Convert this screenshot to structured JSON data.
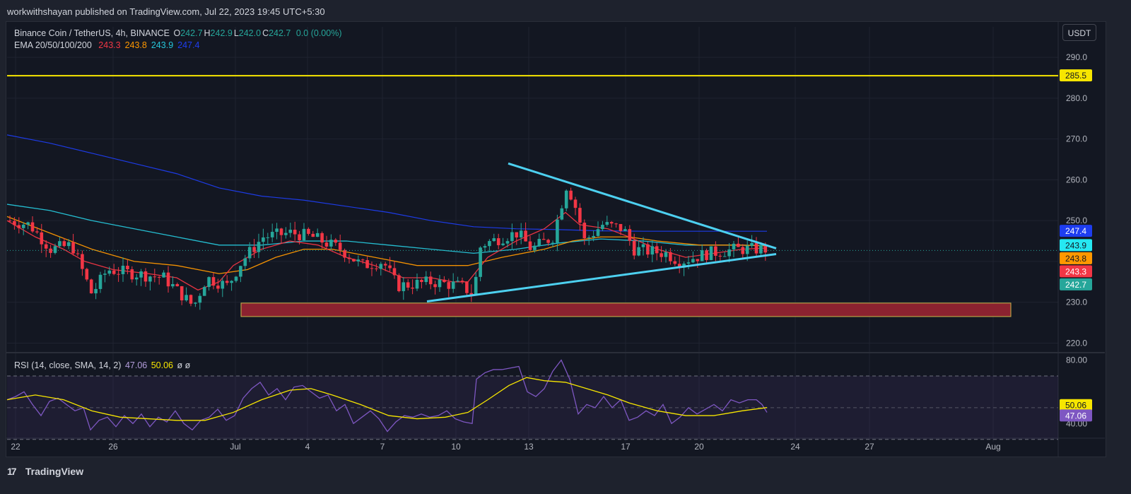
{
  "header": {
    "published_text": "workwithshayan published on TradingView.com, Jul 22, 2023 19:45 UTC+5:30"
  },
  "legend": {
    "symbol": "Binance Coin / TetherUS, 4h, BINANCE",
    "ohlc": [
      {
        "label": "O",
        "value": "242.7"
      },
      {
        "label": "H",
        "value": "242.9"
      },
      {
        "label": "L",
        "value": "242.0"
      },
      {
        "label": "C",
        "value": "242.7"
      }
    ],
    "change": "0.0 (0.00%)",
    "ema_title": "EMA 20/50/100/200",
    "ema_values": [
      {
        "value": "243.3",
        "color": "#f23645"
      },
      {
        "value": "243.8",
        "color": "#ff9800"
      },
      {
        "value": "243.9",
        "color": "#26c6da"
      },
      {
        "value": "247.4",
        "color": "#1e3df0"
      }
    ]
  },
  "rsi_legend": {
    "title": "RSI (14, close, SMA, 14, 2)",
    "rsi": "47.06",
    "sma": "50.06",
    "extra": "ø  ø"
  },
  "currency_button": "USDT",
  "footer": {
    "brand": "TradingView",
    "logo_mark": "17"
  },
  "chart_data": [
    {
      "type": "candlestick",
      "title": "Binance Coin / TetherUS, 4h, BINANCE",
      "x_ticks": [
        "22",
        "26",
        "Jul",
        "4",
        "7",
        "10",
        "13",
        "17",
        "20",
        "24",
        "27",
        "Aug"
      ],
      "ylim": [
        218,
        294
      ],
      "y_ticks": [
        "290.0",
        "280.0",
        "270.0",
        "260.0",
        "250.0",
        "240.0",
        "230.0",
        "220.0"
      ],
      "price_labels": [
        {
          "label": "285.5",
          "value": 285.5,
          "bg": "#f7e600",
          "fg": "#131722"
        },
        {
          "label": "247.4",
          "value": 247.4,
          "bg": "#1e3df0",
          "fg": "#ffffff"
        },
        {
          "label": "243.9",
          "value": 243.9,
          "bg": "#26e8f2",
          "fg": "#131722"
        },
        {
          "label": "243.8",
          "value": 243.8,
          "bg": "#ff9800",
          "fg": "#131722"
        },
        {
          "label": "243.3",
          "value": 243.3,
          "bg": "#f23645",
          "fg": "#ffffff"
        },
        {
          "label": "242.7",
          "value": 242.7,
          "bg": "#26a69a",
          "fg": "#ffffff"
        }
      ],
      "horizontal_line": {
        "value": 285.5,
        "color": "#f7e600"
      },
      "support_zone": {
        "from": 226.5,
        "to": 229.8,
        "color": "#8b2230"
      },
      "triangle": {
        "upper": [
          {
            "x": "Jul 12",
            "y": 264.0
          },
          {
            "x": "Jul 23",
            "y": 243.2
          }
        ],
        "lower": [
          {
            "x": "Jul 9",
            "y": 230.2
          },
          {
            "x": "Jul 23",
            "y": 241.8
          }
        ]
      },
      "last_price": 242.7,
      "ema": {
        "ema20": [
          [
            0,
            250
          ],
          [
            40,
            246
          ],
          [
            80,
            243
          ],
          [
            110,
            240
          ],
          [
            150,
            238
          ],
          [
            200,
            237
          ],
          [
            240,
            236
          ],
          [
            270,
            233
          ],
          [
            300,
            235
          ],
          [
            320,
            239
          ],
          [
            360,
            243
          ],
          [
            400,
            245
          ],
          [
            440,
            244
          ],
          [
            480,
            241
          ],
          [
            520,
            239
          ],
          [
            560,
            236
          ],
          [
            600,
            236
          ],
          [
            630,
            235
          ],
          [
            652,
            235
          ],
          [
            680,
            241
          ],
          [
            720,
            245
          ],
          [
            760,
            248
          ],
          [
            790,
            252
          ],
          [
            810,
            249
          ],
          [
            850,
            248
          ],
          [
            880,
            246
          ],
          [
            920,
            243
          ],
          [
            960,
            241
          ],
          [
            1000,
            242
          ],
          [
            1040,
            243
          ],
          [
            1075,
            243.3
          ]
        ],
        "ema50": [
          [
            0,
            251
          ],
          [
            60,
            247
          ],
          [
            120,
            243
          ],
          [
            180,
            240
          ],
          [
            240,
            239
          ],
          [
            300,
            237
          ],
          [
            340,
            238
          ],
          [
            380,
            241
          ],
          [
            420,
            243
          ],
          [
            460,
            243
          ],
          [
            520,
            241
          ],
          [
            580,
            239
          ],
          [
            652,
            239
          ],
          [
            700,
            241
          ],
          [
            760,
            243
          ],
          [
            800,
            245
          ],
          [
            840,
            246
          ],
          [
            880,
            246
          ],
          [
            920,
            245
          ],
          [
            980,
            244
          ],
          [
            1040,
            244
          ],
          [
            1075,
            243.8
          ]
        ],
        "ema100": [
          [
            0,
            254
          ],
          [
            60,
            252.5
          ],
          [
            120,
            250
          ],
          [
            180,
            248
          ],
          [
            240,
            246
          ],
          [
            300,
            244
          ],
          [
            360,
            244
          ],
          [
            420,
            245
          ],
          [
            480,
            245
          ],
          [
            540,
            244
          ],
          [
            600,
            243
          ],
          [
            660,
            242
          ],
          [
            720,
            243
          ],
          [
            780,
            244.5
          ],
          [
            840,
            245.5
          ],
          [
            900,
            245
          ],
          [
            960,
            244
          ],
          [
            1020,
            244
          ],
          [
            1075,
            243.9
          ]
        ],
        "ema200": [
          [
            0,
            271
          ],
          [
            60,
            269
          ],
          [
            120,
            266.5
          ],
          [
            180,
            264
          ],
          [
            240,
            261.5
          ],
          [
            300,
            258
          ],
          [
            360,
            256
          ],
          [
            420,
            255
          ],
          [
            480,
            253.5
          ],
          [
            540,
            252
          ],
          [
            600,
            250
          ],
          [
            660,
            248.5
          ],
          [
            720,
            248
          ],
          [
            780,
            247.8
          ],
          [
            840,
            247.5
          ],
          [
            900,
            247.4
          ],
          [
            960,
            247.4
          ],
          [
            1020,
            247.4
          ],
          [
            1075,
            247.4
          ]
        ]
      }
    },
    {
      "type": "line",
      "title": "RSI (14, close, SMA, 14, 2)",
      "ylim": [
        33,
        82
      ],
      "y_ticks": [
        "80.00",
        "40.00"
      ],
      "bands": [
        70,
        50,
        30
      ],
      "price_labels": [
        {
          "label": "50.06",
          "value": 50.06,
          "bg": "#f7e600",
          "fg": "#131722"
        },
        {
          "label": "47.06",
          "value": 47.06,
          "bg": "#7e57c2",
          "fg": "#ffffff"
        }
      ],
      "rsi": [
        [
          0,
          55
        ],
        [
          12,
          57
        ],
        [
          24,
          60
        ],
        [
          36,
          52
        ],
        [
          48,
          45
        ],
        [
          60,
          54
        ],
        [
          72,
          56
        ],
        [
          84,
          52
        ],
        [
          96,
          48
        ],
        [
          108,
          50
        ],
        [
          118,
          36
        ],
        [
          130,
          42
        ],
        [
          142,
          44
        ],
        [
          154,
          38
        ],
        [
          166,
          45
        ],
        [
          178,
          40
        ],
        [
          190,
          46
        ],
        [
          202,
          38
        ],
        [
          214,
          44
        ],
        [
          226,
          41
        ],
        [
          238,
          48
        ],
        [
          250,
          40
        ],
        [
          262,
          36
        ],
        [
          274,
          42
        ],
        [
          286,
          44
        ],
        [
          298,
          49
        ],
        [
          310,
          42
        ],
        [
          322,
          45
        ],
        [
          334,
          56
        ],
        [
          346,
          62
        ],
        [
          358,
          66
        ],
        [
          370,
          58
        ],
        [
          382,
          62
        ],
        [
          394,
          55
        ],
        [
          406,
          63
        ],
        [
          418,
          64
        ],
        [
          430,
          60
        ],
        [
          442,
          56
        ],
        [
          454,
          58
        ],
        [
          466,
          48
        ],
        [
          478,
          52
        ],
        [
          490,
          40
        ],
        [
          502,
          44
        ],
        [
          514,
          48
        ],
        [
          526,
          43
        ],
        [
          538,
          35
        ],
        [
          550,
          41
        ],
        [
          562,
          45
        ],
        [
          574,
          44
        ],
        [
          586,
          46
        ],
        [
          598,
          44
        ],
        [
          610,
          45
        ],
        [
          622,
          48
        ],
        [
          634,
          43
        ],
        [
          646,
          41
        ],
        [
          658,
          40
        ],
        [
          664,
          68
        ],
        [
          676,
          72
        ],
        [
          688,
          74
        ],
        [
          700,
          74
        ],
        [
          712,
          75
        ],
        [
          724,
          76
        ],
        [
          736,
          60
        ],
        [
          748,
          57
        ],
        [
          760,
          62
        ],
        [
          772,
          73
        ],
        [
          784,
          80
        ],
        [
          796,
          68
        ],
        [
          808,
          46
        ],
        [
          820,
          52
        ],
        [
          832,
          50
        ],
        [
          844,
          57
        ],
        [
          856,
          50
        ],
        [
          868,
          55
        ],
        [
          880,
          42
        ],
        [
          892,
          44
        ],
        [
          904,
          48
        ],
        [
          916,
          45
        ],
        [
          928,
          52
        ],
        [
          940,
          40
        ],
        [
          952,
          44
        ],
        [
          964,
          50
        ],
        [
          976,
          46
        ],
        [
          988,
          49
        ],
        [
          1000,
          52
        ],
        [
          1012,
          48
        ],
        [
          1024,
          55
        ],
        [
          1036,
          53
        ],
        [
          1048,
          55
        ],
        [
          1060,
          55
        ],
        [
          1068,
          52
        ],
        [
          1075,
          47
        ]
      ],
      "sma": [
        [
          0,
          55
        ],
        [
          40,
          58
        ],
        [
          80,
          55
        ],
        [
          120,
          48
        ],
        [
          160,
          44
        ],
        [
          200,
          43
        ],
        [
          240,
          42
        ],
        [
          280,
          42
        ],
        [
          320,
          47
        ],
        [
          360,
          55
        ],
        [
          400,
          61
        ],
        [
          430,
          62
        ],
        [
          460,
          58
        ],
        [
          500,
          52
        ],
        [
          540,
          45
        ],
        [
          580,
          43
        ],
        [
          620,
          44
        ],
        [
          652,
          47
        ],
        [
          680,
          55
        ],
        [
          710,
          64
        ],
        [
          735,
          69
        ],
        [
          760,
          67
        ],
        [
          790,
          66
        ],
        [
          820,
          62
        ],
        [
          850,
          58
        ],
        [
          880,
          53
        ],
        [
          920,
          48
        ],
        [
          960,
          45
        ],
        [
          1000,
          45
        ],
        [
          1040,
          48
        ],
        [
          1075,
          50.06
        ]
      ]
    }
  ]
}
